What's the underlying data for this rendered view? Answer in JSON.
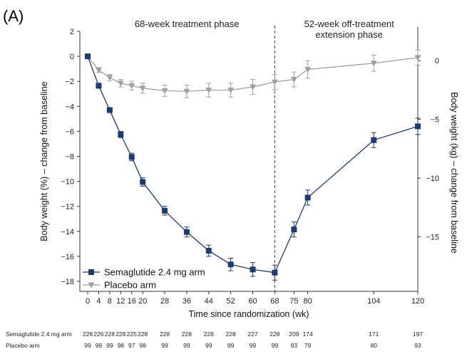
{
  "panel_label": "(A)",
  "colors": {
    "semaglutide": "#1f3a6e",
    "placebo": "#9e9e9e",
    "axis": "#333333",
    "divider": "#555555"
  },
  "chart_data": {
    "type": "line",
    "phases": [
      {
        "lines": [
          "68-week treatment phase"
        ]
      },
      {
        "lines": [
          "52-week off-treatment",
          "extension phase"
        ]
      }
    ],
    "treatment_end_week": 68,
    "xlabel": "Time since randomization (wk)",
    "ylabel": "Body weight (%) – change from baseline",
    "y2label": "Body weight (kg) – change from baseline",
    "x_ticks": [
      0,
      4,
      8,
      12,
      16,
      20,
      28,
      36,
      44,
      52,
      60,
      68,
      75,
      80,
      104,
      120
    ],
    "y_ticks": [
      2,
      0,
      -2,
      -4,
      -6,
      -8,
      -10,
      -12,
      -14,
      -16,
      -18
    ],
    "y2_ticks": [
      0,
      -5,
      -10,
      -15
    ],
    "ylim": [
      -18.8,
      2.0
    ],
    "y2lim": [
      -19.65,
      2.5
    ],
    "series": [
      {
        "name": "Semaglutide 2.4 mg arm",
        "marker": "square",
        "x": [
          0,
          4,
          8,
          12,
          16,
          20,
          28,
          36,
          44,
          52,
          60,
          68,
          75,
          80,
          104,
          120
        ],
        "y": [
          0.0,
          -2.35,
          -4.3,
          -6.25,
          -8.05,
          -10.05,
          -12.35,
          -14.05,
          -15.55,
          -16.65,
          -17.05,
          -17.3,
          -13.85,
          -11.3,
          -6.7,
          -5.6
        ],
        "err": [
          0.15,
          0.2,
          0.2,
          0.25,
          0.3,
          0.35,
          0.35,
          0.4,
          0.45,
          0.5,
          0.55,
          0.6,
          0.6,
          0.6,
          0.6,
          0.65
        ]
      },
      {
        "name": "Placebo arm",
        "marker": "triangle-down",
        "x": [
          0,
          4,
          8,
          12,
          16,
          20,
          28,
          36,
          44,
          52,
          60,
          68,
          75,
          80,
          104,
          120
        ],
        "y": [
          0.0,
          -1.1,
          -1.7,
          -2.15,
          -2.35,
          -2.55,
          -2.75,
          -2.8,
          -2.7,
          -2.7,
          -2.45,
          -2.05,
          -1.85,
          -1.05,
          -0.55,
          -0.1
        ],
        "err": [
          0.1,
          0.2,
          0.25,
          0.3,
          0.35,
          0.4,
          0.45,
          0.5,
          0.55,
          0.55,
          0.6,
          0.6,
          0.6,
          0.7,
          0.65,
          0.6
        ]
      }
    ],
    "legend_position": "bottom-left",
    "at_risk": {
      "weeks": [
        0,
        4,
        8,
        12,
        16,
        20,
        28,
        36,
        44,
        52,
        60,
        68,
        75,
        80,
        104,
        120
      ],
      "rows": [
        {
          "label": "Semaglutide 2.4 mg arm",
          "values": [
            "228",
            "226",
            "228",
            "228",
            "225",
            "228",
            "228",
            "228",
            "228",
            "228",
            "227",
            "228",
            "209",
            "174",
            "171",
            "197"
          ]
        },
        {
          "label": "Placebo arm",
          "values": [
            "99",
            "99",
            "99",
            "98",
            "97",
            "98",
            "99",
            "99",
            "99",
            "99",
            "99",
            "99",
            "93",
            "79",
            "80",
            "93"
          ]
        }
      ]
    }
  }
}
